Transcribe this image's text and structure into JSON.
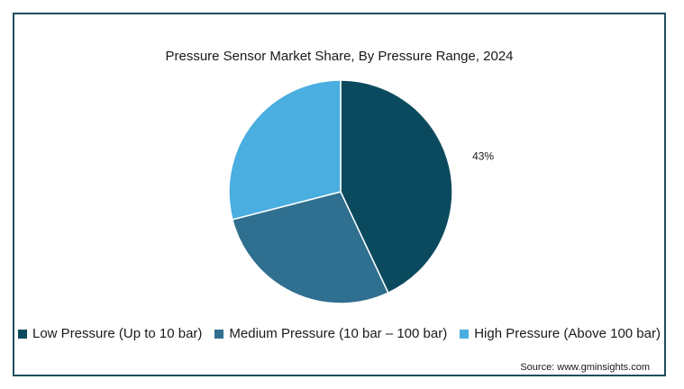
{
  "chart_data": {
    "type": "pie",
    "title": "Pressure Sensor Market Share, By Pressure Range, 2024",
    "slices": [
      {
        "name": "Low Pressure (Up to 10 bar)",
        "value": 43,
        "label": "43%",
        "color": "#0b4a5e"
      },
      {
        "name": "Medium Pressure (10 bar – 100 bar)",
        "value": 28,
        "label": "",
        "color": "#2f6f8f"
      },
      {
        "name": "High Pressure (Above 100 bar)",
        "value": 29,
        "label": "",
        "color": "#4aaee0"
      }
    ],
    "legend_position": "bottom",
    "start_angle_deg": 0,
    "direction": "clockwise"
  },
  "footer": {
    "source": "Source: www.gminsights.com"
  }
}
